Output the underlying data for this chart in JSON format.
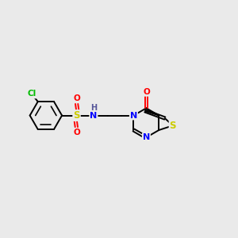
{
  "background_color": "#eaeaea",
  "bond_color": "#000000",
  "atom_colors": {
    "Cl": "#00bb00",
    "S": "#cccc00",
    "S_th": "#cccc00",
    "O": "#ff0000",
    "N": "#0000ff",
    "H": "#555599",
    "C": "#000000"
  },
  "figsize": [
    3.0,
    3.0
  ],
  "dpi": 100
}
